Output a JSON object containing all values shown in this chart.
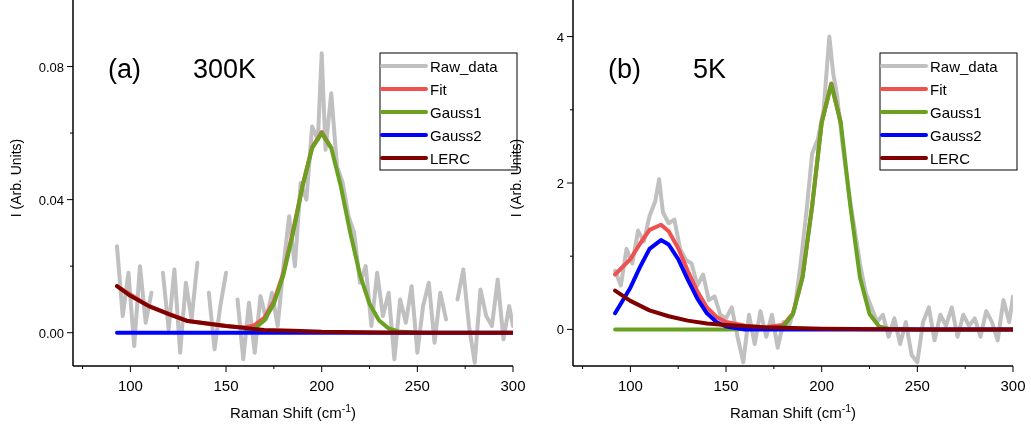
{
  "chart_data": [
    {
      "type": "line",
      "annotations": [
        "(a)",
        "300K"
      ],
      "xlabel": "Raman Shift (cm$^{-1}$)",
      "ylabel": "I (Arb. Units)",
      "xlim": [
        70,
        300
      ],
      "ylim": [
        -0.01,
        0.1
      ],
      "xticks": [
        {
          "value": 75,
          "label": null
        },
        100,
        {
          "value": 125,
          "label": null
        },
        150,
        {
          "value": 175,
          "label": null
        },
        200,
        {
          "value": 225,
          "label": null
        },
        250,
        {
          "value": 275,
          "label": null
        },
        300
      ],
      "yticks": [
        {
          "value": 0,
          "label": "0.00"
        },
        {
          "value": 0.02,
          "label": null
        },
        0.04,
        {
          "value": 0.06,
          "label": null
        },
        0.08
      ],
      "legend": "top right",
      "grid": false,
      "marker": "none",
      "line_style": "solid",
      "series": [
        {
          "name": "Raw_data",
          "color": "#c0c0c0",
          "x": [
            93,
            96,
            99,
            102,
            105,
            108,
            111,
            114,
            117,
            120,
            123,
            126,
            129,
            132,
            135,
            138,
            141,
            144,
            147,
            150,
            153,
            156,
            159,
            162,
            165,
            168,
            171,
            174,
            177,
            180,
            183,
            186,
            189,
            192,
            195,
            198,
            200,
            202,
            205,
            208,
            211,
            214,
            217,
            220,
            223,
            226,
            229,
            232,
            235,
            238,
            241,
            244,
            247,
            250,
            253,
            256,
            259,
            262,
            265,
            268,
            271,
            274,
            277,
            280,
            283,
            286,
            289,
            292,
            295,
            298,
            300
          ],
          "values": [
            0.026,
            0.005,
            0.018,
            -0.004,
            0.02,
            0.003,
            0.012,
            null,
            0.018,
            0.001,
            0.019,
            -0.006,
            0.015,
            0.004,
            0.021,
            null,
            0.012,
            -0.005,
            0.008,
            0.018,
            null,
            0.01,
            -0.008,
            0.009,
            -0.006,
            0.011,
            0.004,
            0.012,
            0.002,
            0.02,
            0.035,
            0.02,
            0.045,
            0.04,
            0.062,
            0.058,
            0.084,
            0.055,
            0.072,
            0.05,
            0.045,
            0.035,
            0.03,
            0.015,
            0.02,
            0.002,
            0.018,
            0.005,
            0.012,
            -0.008,
            0.01,
            0.003,
            0.014,
            -0.006,
            0.008,
            0.015,
            -0.003,
            0.012,
            0.004,
            null,
            0.01,
            0.019,
            0.002,
            -0.009,
            0.013,
            0.005,
            0.002,
            0.016,
            -0.002,
            0.008,
            0.002
          ]
        },
        {
          "name": "Fit",
          "color": "#f05050",
          "x": [
            93,
            110,
            130,
            150,
            160,
            165,
            170,
            175,
            180,
            185,
            190,
            195,
            200,
            205
          ],
          "values": [
            0.014,
            0.0079,
            0.0035,
            0.002,
            0.0016,
            0.0023,
            0.0045,
            0.0094,
            0.018,
            0.0305,
            0.0443,
            0.0557,
            0.0603,
            0.0555
          ]
        },
        {
          "name": "Gauss1",
          "color": "#6aa121",
          "x": [
            160,
            165,
            170,
            175,
            180,
            185,
            190,
            195,
            200,
            205,
            210,
            215,
            220,
            225,
            230,
            235,
            240,
            250
          ],
          "values": [
            0.0004,
            0.0013,
            0.0037,
            0.0087,
            0.0174,
            0.0299,
            0.044,
            0.0555,
            0.06,
            0.0555,
            0.044,
            0.0299,
            0.0174,
            0.0087,
            0.0037,
            0.0013,
            0.0004,
            0
          ]
        },
        {
          "name": "Gauss2",
          "color": "#0000ff",
          "x": [
            93,
            300
          ],
          "values": [
            0,
            0
          ]
        },
        {
          "name": "LERC",
          "color": "#800000",
          "x": [
            93,
            100,
            110,
            120,
            130,
            140,
            150,
            160,
            170,
            185,
            200,
            230,
            260,
            300
          ],
          "values": [
            0.014,
            0.0111,
            0.0079,
            0.0056,
            0.0035,
            0.0028,
            0.002,
            0.0014,
            0.0008,
            0.0006,
            0.0003,
            0.0001,
            0,
            0
          ]
        }
      ]
    },
    {
      "type": "line",
      "annotations": [
        "(b)",
        "5K"
      ],
      "xlabel": "Raman Shift (cm$^{-1}$)",
      "ylabel": "I (Arb. Units)",
      "xlim": [
        70,
        300
      ],
      "ylim": [
        -0.5,
        4.5
      ],
      "xticks": [
        {
          "value": 75,
          "label": null
        },
        100,
        {
          "value": 125,
          "label": null
        },
        150,
        {
          "value": 175,
          "label": null
        },
        200,
        {
          "value": 225,
          "label": null
        },
        250,
        {
          "value": 275,
          "label": null
        },
        300
      ],
      "yticks": [
        0,
        {
          "value": 1,
          "label": null
        },
        2,
        {
          "value": 3,
          "label": null
        },
        4
      ],
      "legend": "top right",
      "grid": false,
      "marker": "none",
      "line_style": "solid",
      "series": [
        {
          "name": "Raw_data",
          "color": "#c0c0c0",
          "x": [
            92,
            95,
            98,
            101,
            104,
            107,
            110,
            113,
            115,
            117,
            120,
            123,
            126,
            129,
            132,
            135,
            138,
            141,
            144,
            147,
            150,
            153,
            156,
            159,
            162,
            165,
            168,
            171,
            174,
            177,
            180,
            183,
            186,
            189,
            192,
            195,
            198,
            201,
            204,
            206,
            208,
            211,
            214,
            217,
            220,
            223,
            226,
            229,
            232,
            235,
            238,
            241,
            244,
            247,
            250,
            253,
            256,
            259,
            262,
            265,
            268,
            271,
            274,
            277,
            280,
            283,
            286,
            289,
            292,
            295,
            298,
            300
          ],
          "values": [
            0.8,
            0.6,
            1.1,
            0.9,
            1.35,
            1.2,
            1.55,
            1.75,
            2.05,
            1.6,
            1.45,
            1.5,
            1.1,
            0.95,
            0.9,
            0.6,
            0.75,
            0.4,
            0.45,
            0.2,
            0.15,
            0.3,
            -0.1,
            -0.45,
            0.2,
            -0.2,
            0.25,
            -0.1,
            0.2,
            -0.25,
            0.1,
            0.05,
            0.3,
            0.9,
            1.6,
            2.4,
            2.6,
            3.0,
            4.0,
            3.5,
            3.2,
            2.5,
            1.9,
            1.4,
            0.9,
            0.5,
            0.3,
            0.1,
            0.2,
            -0.1,
            0.15,
            -0.2,
            0.1,
            -0.35,
            -0.45,
            0.1,
            0.3,
            -0.15,
            0.2,
            0.05,
            0.3,
            -0.1,
            0.2,
            0.05,
            0.15,
            -0.1,
            0.25,
            0.1,
            -0.15,
            0.4,
            0.1,
            0.45
          ]
        },
        {
          "name": "Fit",
          "color": "#f05050",
          "x": [
            92,
            100,
            105,
            110,
            116,
            120,
            125,
            130,
            135,
            140,
            145,
            150,
            160,
            170,
            180,
            185,
            190,
            195,
            200,
            205,
            210
          ],
          "values": [
            0.75,
            0.96,
            1.17,
            1.36,
            1.43,
            1.34,
            1.11,
            0.8,
            0.52,
            0.3,
            0.17,
            0.1,
            0.05,
            0.03,
            0.06,
            0.22,
            0.72,
            1.69,
            2.83,
            3.36,
            2.82
          ]
        },
        {
          "name": "Gauss1",
          "color": "#6aa121",
          "x": [
            92,
            150,
            175,
            180,
            185,
            190,
            195,
            200,
            205,
            210,
            215,
            220,
            225,
            230,
            235,
            250,
            300
          ],
          "values": [
            0,
            0,
            0.01,
            0.04,
            0.21,
            0.71,
            1.68,
            2.82,
            3.35,
            2.82,
            1.68,
            0.71,
            0.21,
            0.04,
            0.01,
            0,
            0
          ]
        },
        {
          "name": "Gauss2",
          "color": "#0000ff",
          "x": [
            92,
            100,
            105,
            110,
            116,
            120,
            125,
            130,
            135,
            140,
            145,
            150,
            160,
            170,
            300
          ],
          "values": [
            0.22,
            0.57,
            0.85,
            1.1,
            1.22,
            1.16,
            0.96,
            0.68,
            0.42,
            0.22,
            0.1,
            0.04,
            0,
            0,
            0
          ]
        },
        {
          "name": "LERC",
          "color": "#800000",
          "x": [
            92,
            100,
            110,
            120,
            130,
            140,
            150,
            170,
            200,
            250,
            300
          ],
          "values": [
            0.53,
            0.39,
            0.26,
            0.18,
            0.12,
            0.08,
            0.06,
            0.03,
            0.01,
            0,
            0
          ]
        }
      ]
    }
  ]
}
